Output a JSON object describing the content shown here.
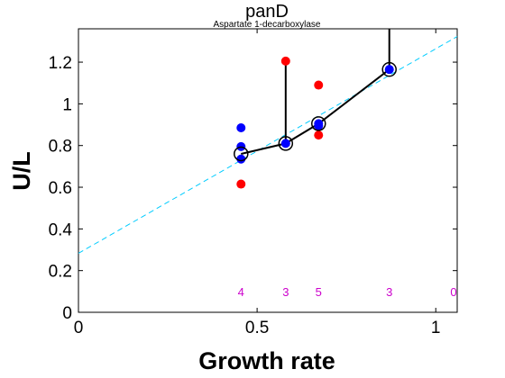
{
  "chart_data": {
    "type": "scatter",
    "title": "panD",
    "subtitle": "Aspartate 1-decarboxylase",
    "xlabel": "Growth rate",
    "ylabel": "U/L",
    "xlim": [
      0,
      1.06
    ],
    "ylim": [
      0,
      1.36
    ],
    "xticks": [
      0,
      0.5,
      1
    ],
    "xtick_labels": [
      "0",
      "0.5",
      "1"
    ],
    "yticks": [
      0,
      0.2,
      0.4,
      0.6,
      0.8,
      1.0,
      1.2
    ],
    "ytick_labels": [
      "0",
      "0.2",
      "0.4",
      "0.6",
      "0.8",
      "1",
      "1.2"
    ],
    "grid": false,
    "colors": {
      "blue": "#0000ff",
      "red": "#ff0000",
      "fit": "#00ccff",
      "line": "#000000",
      "counts": "#cc00cc"
    },
    "blue_points": [
      {
        "x": 0.455,
        "y": 0.885
      },
      {
        "x": 0.455,
        "y": 0.795
      },
      {
        "x": 0.455,
        "y": 0.735
      },
      {
        "x": 0.58,
        "y": 0.81
      },
      {
        "x": 0.672,
        "y": 0.905
      },
      {
        "x": 0.672,
        "y": 0.895
      },
      {
        "x": 0.87,
        "y": 1.165
      }
    ],
    "red_points": [
      {
        "x": 0.455,
        "y": 0.615
      },
      {
        "x": 0.58,
        "y": 1.205
      },
      {
        "x": 0.672,
        "y": 1.09
      },
      {
        "x": 0.672,
        "y": 0.85
      }
    ],
    "mean_line": [
      {
        "x": 0.455,
        "y": 0.76
      },
      {
        "x": 0.58,
        "y": 0.81
      },
      {
        "x": 0.672,
        "y": 0.905
      },
      {
        "x": 0.87,
        "y": 1.165
      }
    ],
    "error_bars": [
      {
        "x": 0.58,
        "y_low": 0.81,
        "y_high": 1.205
      },
      {
        "x": 0.87,
        "y_low": 1.165,
        "y_high": 1.36
      }
    ],
    "fit_line": {
      "x": [
        0,
        1.06
      ],
      "y": [
        0.283,
        1.323
      ]
    },
    "counts": [
      {
        "x": 0.455,
        "label": "4"
      },
      {
        "x": 0.58,
        "label": "3"
      },
      {
        "x": 0.672,
        "label": "5"
      },
      {
        "x": 0.87,
        "label": "3"
      },
      {
        "x": 1.05,
        "label": "0"
      }
    ],
    "counts_y": 0.1
  }
}
